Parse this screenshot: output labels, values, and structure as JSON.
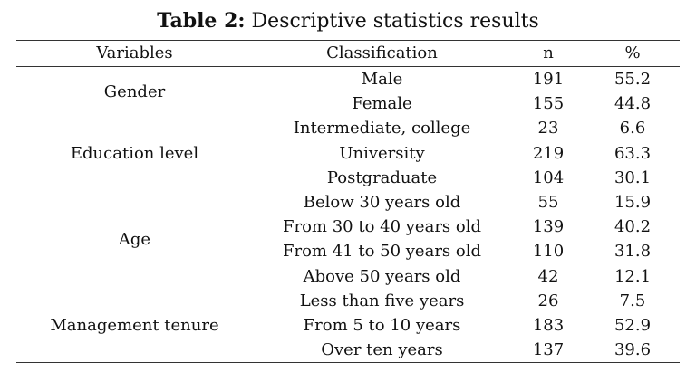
{
  "caption": {
    "label": "Table 2:",
    "title": "Descriptive statistics results"
  },
  "table": {
    "headers": [
      "Variables",
      "Classification",
      "n",
      "%"
    ],
    "groups": [
      {
        "variable": "Gender",
        "rows": [
          {
            "classification": "Male",
            "n": "191",
            "pct": "55.2"
          },
          {
            "classification": "Female",
            "n": "155",
            "pct": "44.8"
          }
        ]
      },
      {
        "variable": "Education level",
        "rows": [
          {
            "classification": "Intermediate, college",
            "n": "23",
            "pct": "6.6"
          },
          {
            "classification": "University",
            "n": "219",
            "pct": "63.3"
          },
          {
            "classification": "Postgraduate",
            "n": "104",
            "pct": "30.1"
          }
        ]
      },
      {
        "variable": "Age",
        "rows": [
          {
            "classification": "Below 30 years old",
            "n": "55",
            "pct": "15.9"
          },
          {
            "classification": "From 30 to 40 years old",
            "n": "139",
            "pct": "40.2"
          },
          {
            "classification": "From 41 to 50 years old",
            "n": "110",
            "pct": "31.8"
          },
          {
            "classification": "Above 50 years old",
            "n": "42",
            "pct": "12.1"
          }
        ]
      },
      {
        "variable": "Management tenure",
        "rows": [
          {
            "classification": "Less than five years",
            "n": "26",
            "pct": "7.5"
          },
          {
            "classification": "From 5 to 10 years",
            "n": "183",
            "pct": "52.9"
          },
          {
            "classification": "Over ten years",
            "n": "137",
            "pct": "39.6"
          }
        ]
      }
    ]
  }
}
